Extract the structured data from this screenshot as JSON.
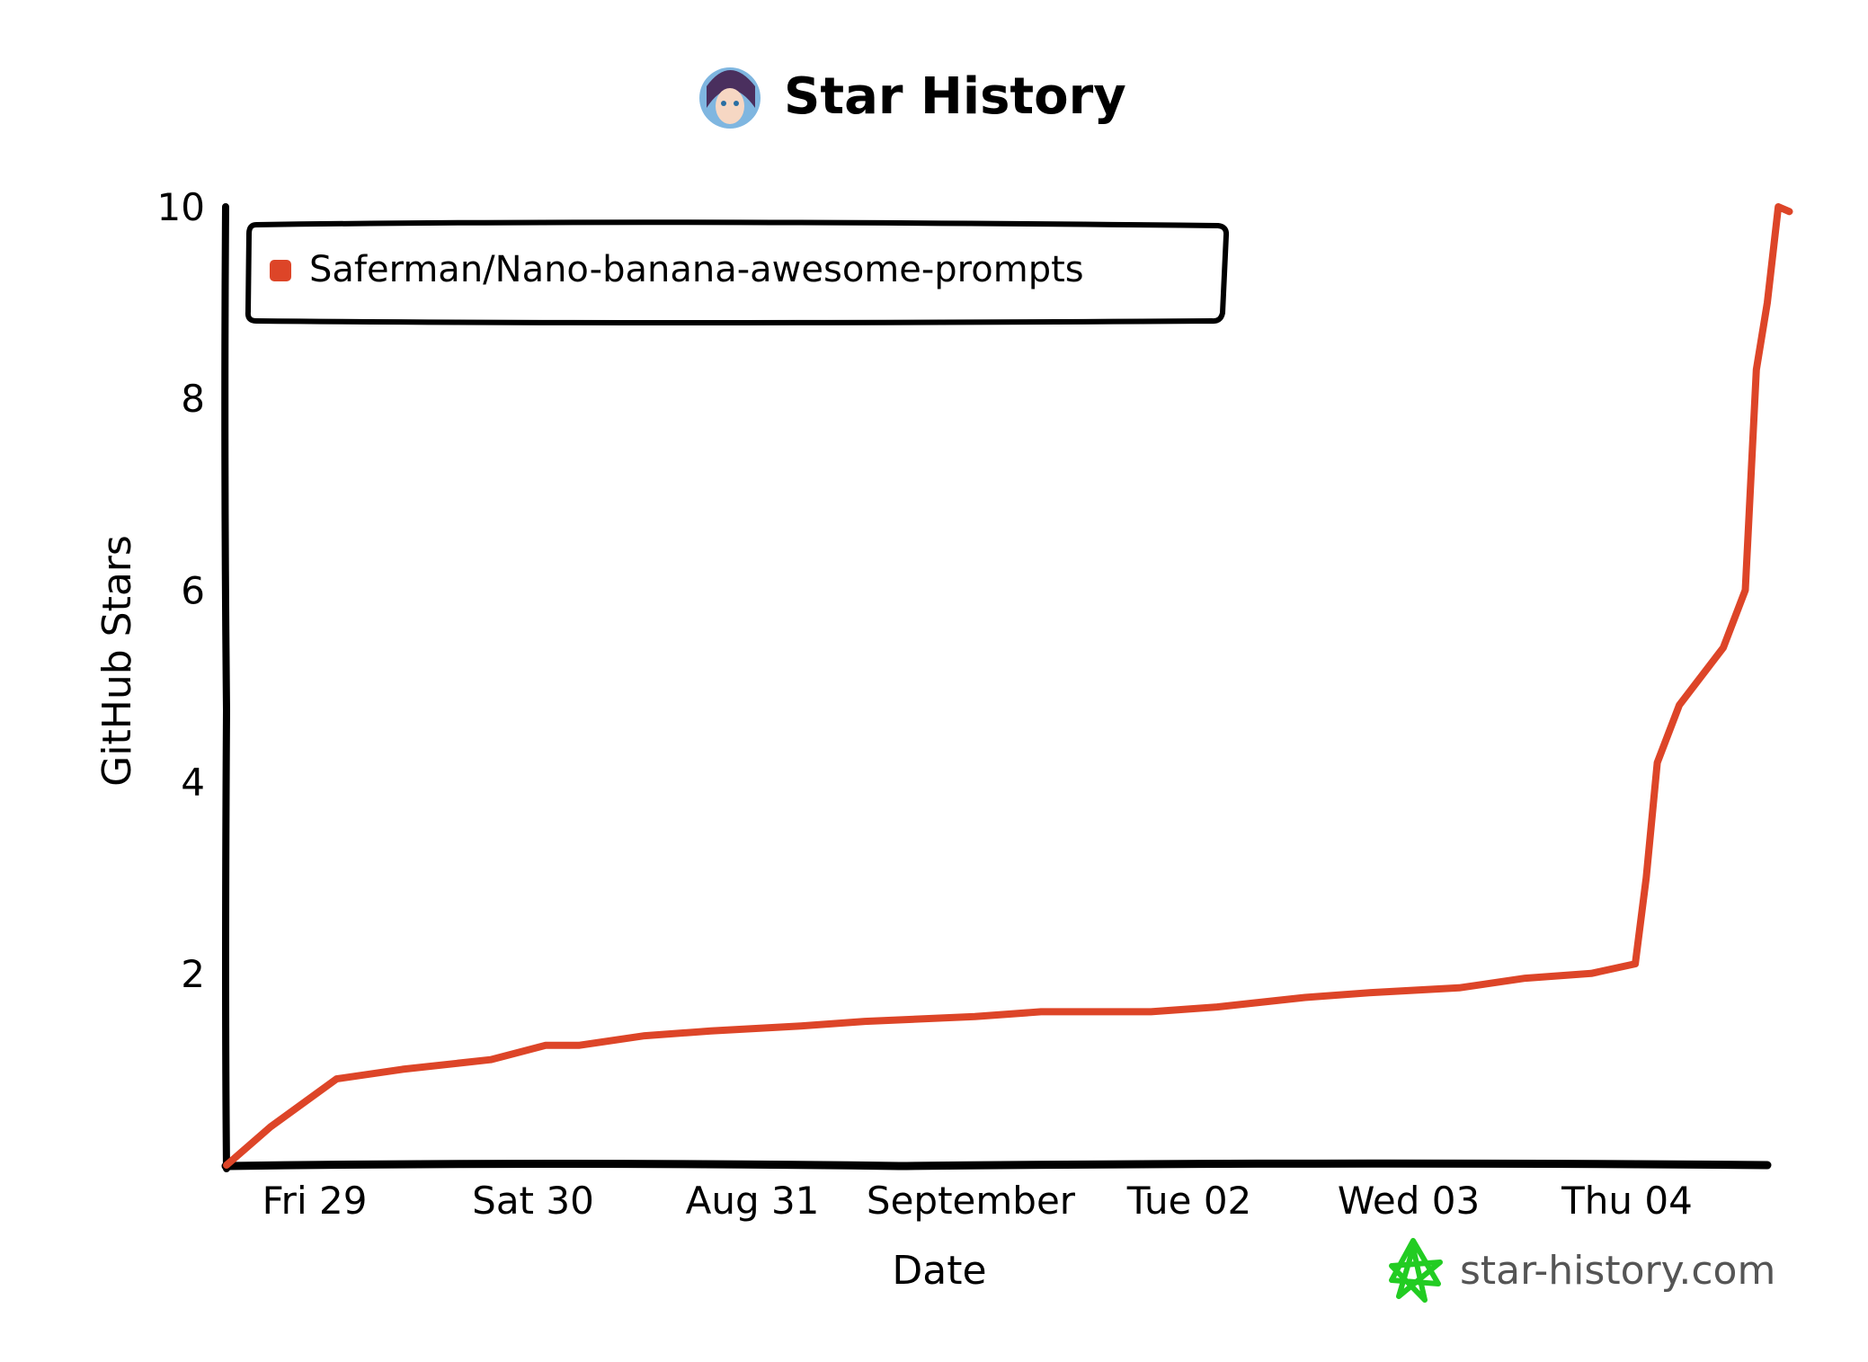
{
  "chart_data": {
    "type": "line",
    "title": "Star History",
    "xlabel": "Date",
    "ylabel": "GitHub Stars",
    "ylim": [
      0,
      10
    ],
    "yticks": [
      2,
      4,
      6,
      8,
      10
    ],
    "xticks": [
      "Fri 29",
      "Sat 30",
      "Aug 31",
      "September",
      "Tue 02",
      "Wed 03",
      "Thu 04"
    ],
    "xlim": [
      0,
      7
    ],
    "grid": false,
    "legend_placement": "top-left",
    "series": [
      {
        "name": "Saferman/Nano-banana-awesome-prompts",
        "color": "#dd4528",
        "x": [
          0,
          0.2,
          0.5,
          0.8,
          1.2,
          1.45,
          1.6,
          1.9,
          2.2,
          2.6,
          2.9,
          3.4,
          3.7,
          4.2,
          4.5,
          4.9,
          5.2,
          5.6,
          5.9,
          6.2,
          6.4,
          6.45,
          6.5,
          6.6,
          6.8,
          6.9,
          6.95,
          7.0,
          7.05,
          7.1
        ],
        "y": [
          0,
          0.4,
          0.9,
          1.0,
          1.1,
          1.25,
          1.25,
          1.35,
          1.4,
          1.45,
          1.5,
          1.55,
          1.6,
          1.6,
          1.65,
          1.75,
          1.8,
          1.85,
          1.95,
          2.0,
          2.1,
          3.0,
          4.2,
          4.8,
          5.4,
          6.0,
          8.3,
          9.0,
          10.0,
          9.95
        ]
      }
    ]
  },
  "branding": {
    "watermark": "star-history.com",
    "watermark_color": "#22cc22",
    "avatar": "avatar-icon"
  }
}
